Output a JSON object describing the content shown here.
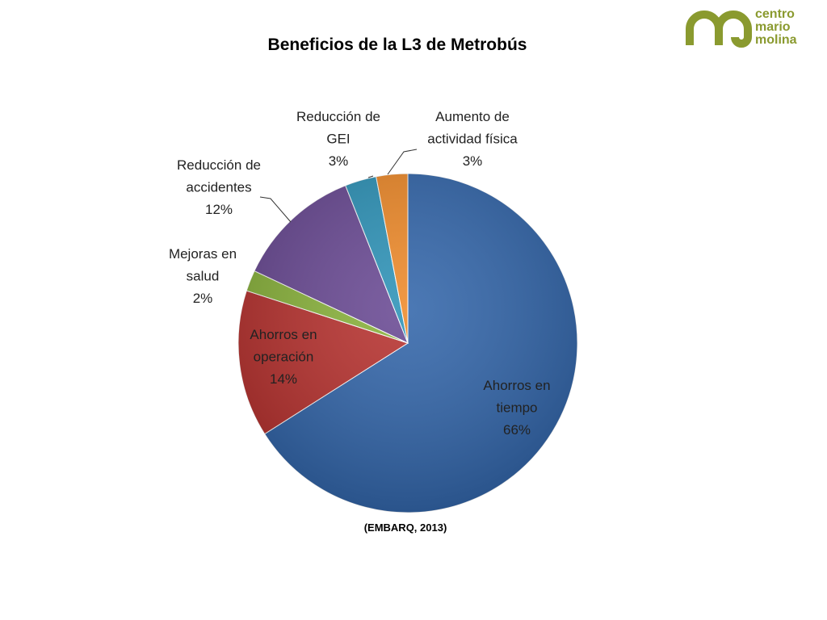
{
  "title": "Beneficios de la L3 de Metrobús",
  "source": "(EMBARQ, 2013)",
  "logo": {
    "text_lines": [
      "centro",
      "mario",
      "molina"
    ],
    "color": "#8a9a2f"
  },
  "chart_data": {
    "type": "pie",
    "title": "Beneficios de la L3 de Metrobús",
    "start": "12 o'clock",
    "direction": "clockwise",
    "slices": [
      {
        "label_lines": [
          "Ahorros en",
          "tiempo"
        ],
        "value": 66,
        "pct_label": "66%",
        "color": "#3366aa"
      },
      {
        "label_lines": [
          "Ahorros en",
          "operación"
        ],
        "value": 14,
        "pct_label": "14%",
        "color": "#b83330"
      },
      {
        "label_lines": [
          "Mejoras en",
          "salud"
        ],
        "value": 2,
        "pct_label": "2%",
        "color": "#8ab33c"
      },
      {
        "label_lines": [
          "Reducción de",
          "accidentes"
        ],
        "value": 12,
        "pct_label": "12%",
        "color": "#6a4a94"
      },
      {
        "label_lines": [
          "Reducción de",
          "GEI"
        ],
        "value": 3,
        "pct_label": "3%",
        "color": "#2e93b8"
      },
      {
        "label_lines": [
          "Aumento de",
          "actividad física"
        ],
        "value": 3,
        "pct_label": "3%",
        "color": "#ee8a2a"
      }
    ]
  }
}
